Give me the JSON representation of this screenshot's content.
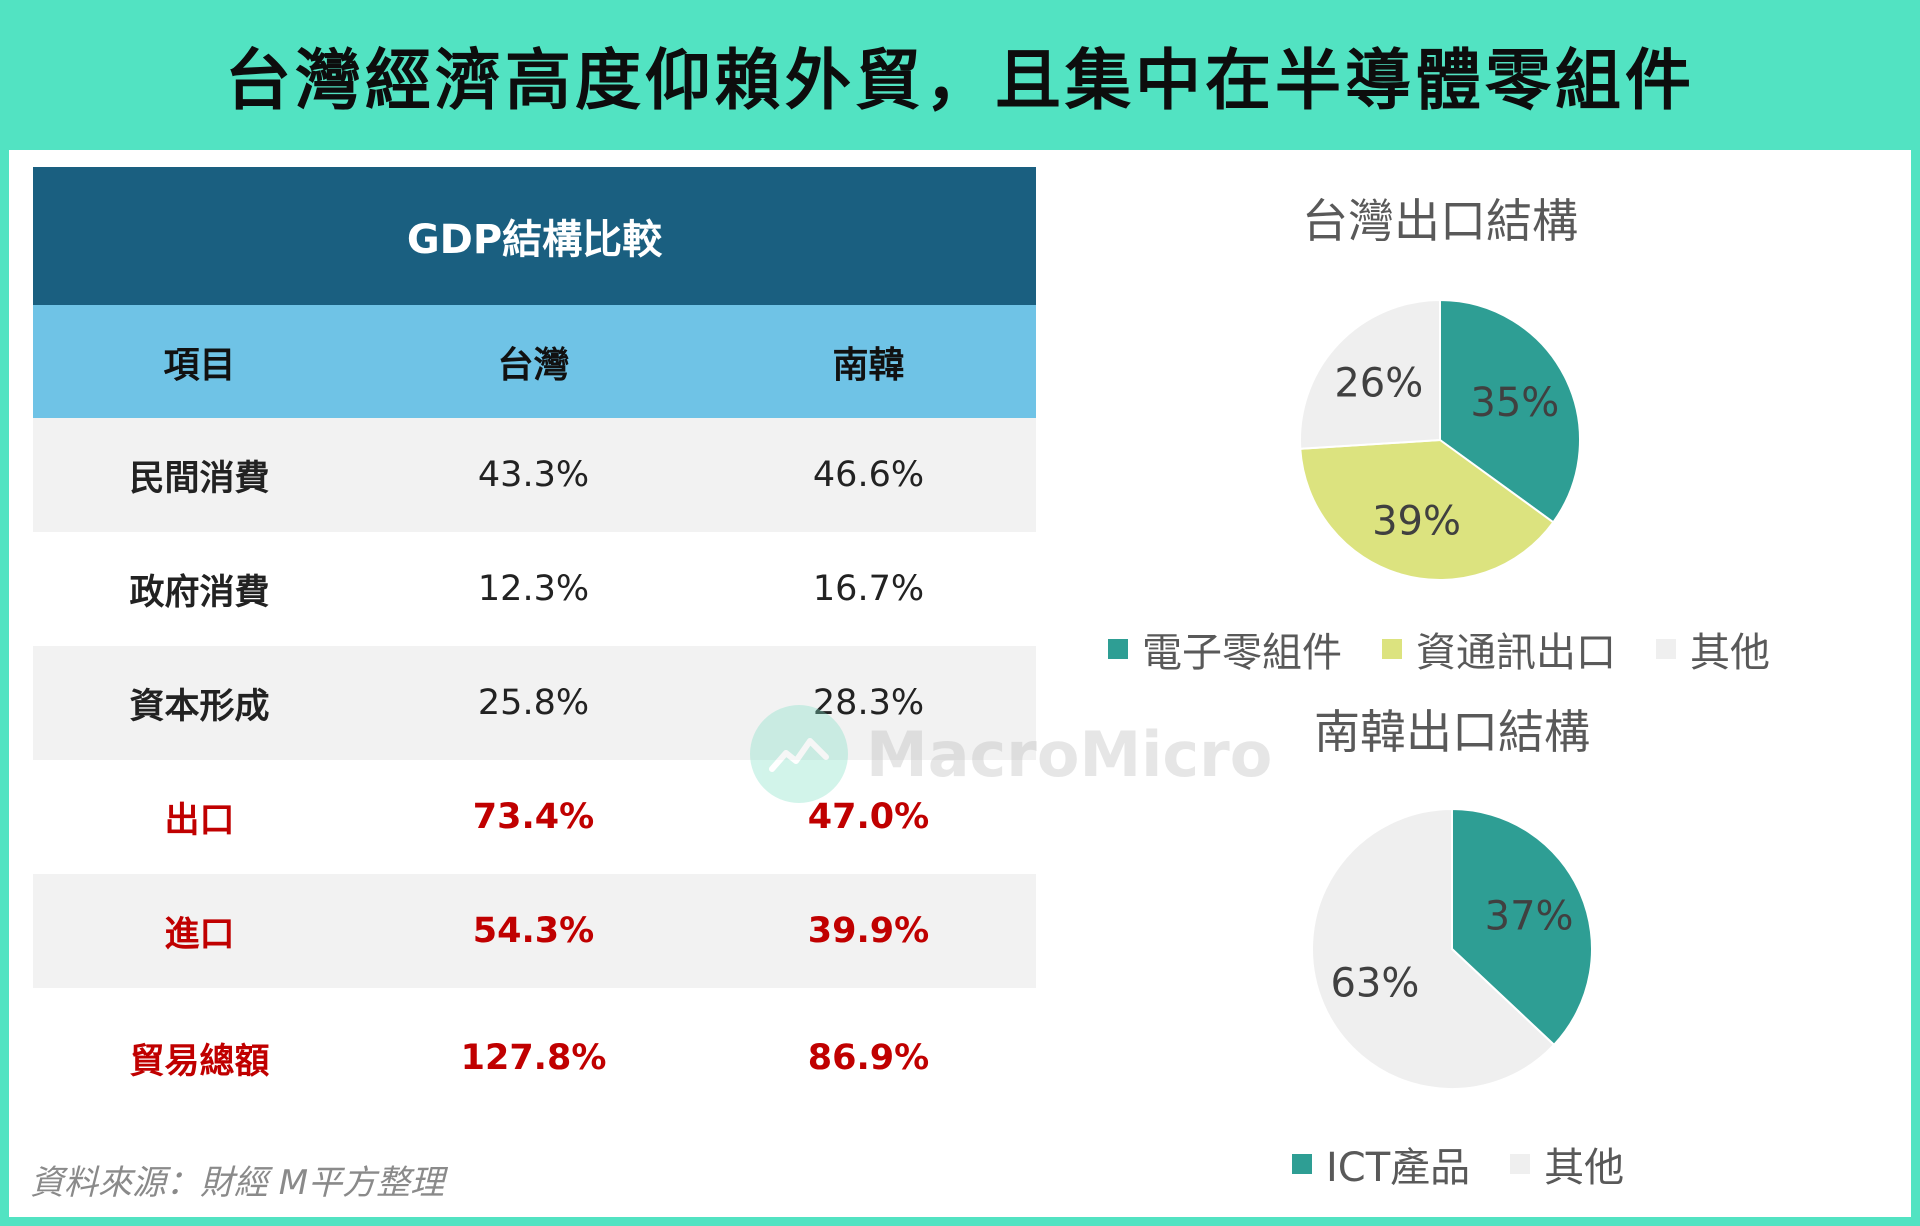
{
  "header": {
    "title": "台灣經濟高度仰賴外貿，且集中在半導體零組件"
  },
  "table": {
    "title": "GDP結構比較",
    "columns": [
      "項目",
      "台灣",
      "南韓"
    ],
    "rows": [
      {
        "item": "民間消費",
        "taiwan": "43.3%",
        "korea": "46.6%"
      },
      {
        "item": "政府消費",
        "taiwan": "12.3%",
        "korea": "16.7%"
      },
      {
        "item": "資本形成",
        "taiwan": "25.8%",
        "korea": "28.3%"
      },
      {
        "item": "出口",
        "taiwan": "73.4%",
        "korea": "47.0%"
      },
      {
        "item": "進口",
        "taiwan": "54.3%",
        "korea": "39.9%"
      },
      {
        "item": "貿易總額",
        "taiwan": "127.8%",
        "korea": "86.9%"
      }
    ]
  },
  "source": "資料來源：財經 M平方整理",
  "watermark": "MacroMicro",
  "colors": {
    "teal": "#2e9e94",
    "yellowgreen": "#dce37f",
    "lightgray": "#efefef",
    "trade_red": "#c00000",
    "table_header": "#1a5f80",
    "table_colhead": "#6fc3e6",
    "banner": "#52e3c2"
  },
  "chart_data": [
    {
      "type": "pie",
      "title": "台灣出口結構",
      "labels": [
        "電子零組件",
        "資通訊出口",
        "其他"
      ],
      "values": [
        35,
        39,
        26
      ],
      "value_labels": [
        "35%",
        "39%",
        "26%"
      ],
      "colors": [
        "#2e9e94",
        "#dce37f",
        "#efefef"
      ],
      "legend": "bottom"
    },
    {
      "type": "pie",
      "title": "南韓出口結構",
      "labels": [
        "ICT產品",
        "其他"
      ],
      "values": [
        37,
        63
      ],
      "value_labels": [
        "37%",
        "63%"
      ],
      "colors": [
        "#2e9e94",
        "#efefef"
      ],
      "legend": "bottom"
    }
  ]
}
